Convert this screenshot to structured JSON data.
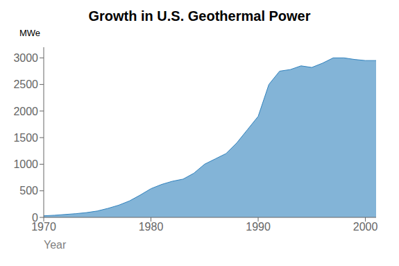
{
  "chart_data": {
    "type": "area",
    "title": "Growth in U.S. Geothermal Power",
    "xlabel": "Year",
    "ylabel": "MWe",
    "x": [
      1970,
      1971,
      1972,
      1973,
      1974,
      1975,
      1976,
      1977,
      1978,
      1979,
      1980,
      1981,
      1982,
      1983,
      1984,
      1985,
      1986,
      1987,
      1988,
      1989,
      1990,
      1991,
      1992,
      1993,
      1994,
      1995,
      1996,
      1997,
      1998,
      1999,
      2000,
      2001
    ],
    "values": [
      30,
      40,
      55,
      70,
      90,
      120,
      170,
      230,
      310,
      420,
      540,
      620,
      680,
      720,
      830,
      1000,
      1100,
      1200,
      1400,
      1650,
      1900,
      2500,
      2750,
      2780,
      2850,
      2820,
      2900,
      3000,
      3000,
      2970,
      2950,
      2950
    ],
    "xlim": [
      1970,
      2001
    ],
    "xticks": [
      1970,
      1980,
      1990,
      2000
    ],
    "ylim": [
      0,
      3200
    ],
    "yticks": [
      0,
      500,
      1000,
      1500,
      2000,
      2500,
      3000
    ]
  }
}
